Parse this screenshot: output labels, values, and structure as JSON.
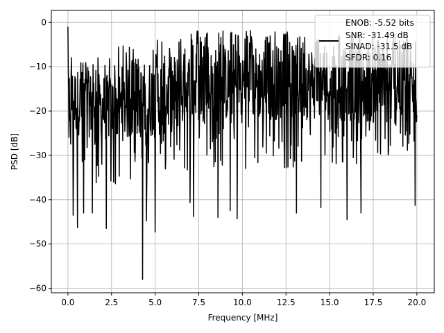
{
  "chart_data": {
    "type": "line",
    "title": "",
    "xlabel": "Frequency [MHz]",
    "ylabel": "PSD [dB]",
    "xlim": [
      -0.95,
      21.0
    ],
    "ylim": [
      -61.0,
      2.7
    ],
    "xticks": [
      0.0,
      2.5,
      5.0,
      7.5,
      10.0,
      12.5,
      15.0,
      17.5,
      20.0
    ],
    "xtick_labels": [
      "0.0",
      "2.5",
      "5.0",
      "7.5",
      "10.0",
      "12.5",
      "15.0",
      "17.5",
      "20.0"
    ],
    "yticks": [
      0,
      -10,
      -20,
      -30,
      -40,
      -50,
      -60
    ],
    "ytick_labels": [
      "0",
      "−10",
      "−20",
      "−30",
      "−40",
      "−50",
      "−60"
    ],
    "grid": true,
    "legend_position": "top-right",
    "legend": [
      "ENOB: -5.52 bits",
      "SNR: -31.49 dB",
      "SINAD: -31.5 dB",
      "SFDR: 0.16"
    ],
    "series": [
      {
        "color": "#000000",
        "x_range": [
          0.0,
          20.0
        ],
        "num_points": 1000,
        "description": "noisy spectrum with no distinct peaks",
        "envelope_x": [
          0.0,
          0.1,
          1.0,
          2.5,
          5.0,
          7.5,
          10.0,
          12.5,
          15.0,
          17.5,
          20.0
        ],
        "envelope_upper": [
          -1.0,
          -5.0,
          -9.0,
          -6.0,
          -3.0,
          -1.5,
          -1.5,
          -2.0,
          -2.5,
          -2.5,
          -3.0
        ],
        "envelope_lower": [
          -28.0,
          -36.0,
          -38.0,
          -37.0,
          -35.0,
          -33.0,
          -33.0,
          -33.0,
          -33.0,
          -33.0,
          -30.0
        ],
        "body_x": [
          0.0,
          2.5,
          5.0,
          7.5,
          10.0,
          12.5,
          15.0,
          17.5,
          20.0
        ],
        "body_upper": [
          -10.0,
          -12.0,
          -8.0,
          -6.0,
          -5.0,
          -5.0,
          -5.5,
          -6.0,
          -7.0
        ],
        "body_lower": [
          -25.0,
          -27.0,
          -26.0,
          -23.0,
          -22.0,
          -22.0,
          -22.0,
          -23.0,
          -24.0
        ],
        "notable_dips": [
          {
            "x": 0.3,
            "y": -43.5
          },
          {
            "x": 0.55,
            "y": -46.3
          },
          {
            "x": 0.9,
            "y": -43.0
          },
          {
            "x": 1.4,
            "y": -43.0
          },
          {
            "x": 2.2,
            "y": -46.5
          },
          {
            "x": 4.28,
            "y": -58.0
          },
          {
            "x": 4.5,
            "y": -44.8
          },
          {
            "x": 5.0,
            "y": -47.3
          },
          {
            "x": 7.0,
            "y": -40.7
          },
          {
            "x": 7.2,
            "y": -43.8
          },
          {
            "x": 8.6,
            "y": -44.0
          },
          {
            "x": 9.3,
            "y": -42.5
          },
          {
            "x": 9.7,
            "y": -44.3
          },
          {
            "x": 13.1,
            "y": -43.0
          },
          {
            "x": 14.5,
            "y": -41.8
          },
          {
            "x": 16.0,
            "y": -44.5
          },
          {
            "x": 16.8,
            "y": -43.0
          },
          {
            "x": 19.9,
            "y": -41.3
          }
        ]
      }
    ]
  }
}
